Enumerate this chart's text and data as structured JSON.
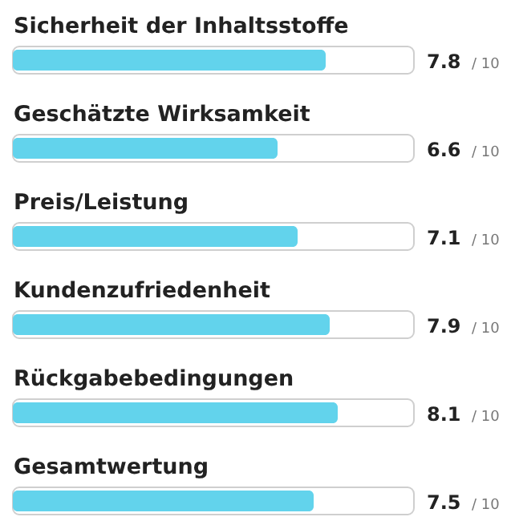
{
  "chart_data": {
    "type": "bar",
    "orientation": "horizontal",
    "categories": [
      "Sicherheit der Inhaltsstoffe",
      "Geschätzte Wirksamkeit",
      "Preis/Leistung",
      "Kundenzufriedenheit",
      "Rückgabebedingungen",
      "Gesamtwertung"
    ],
    "values": [
      7.8,
      6.6,
      7.1,
      7.9,
      8.1,
      7.5
    ],
    "color": "#62d3ec",
    "xlim": [
      0,
      10
    ],
    "data_labels": true,
    "annotations": [
      "/ 10",
      "/ 10",
      "/ 10",
      "/ 10",
      "/ 10",
      "/ 10"
    ]
  }
}
